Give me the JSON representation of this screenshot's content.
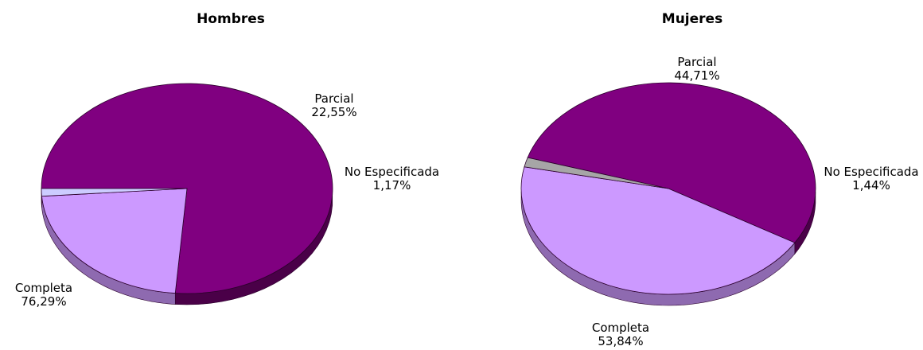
{
  "chart_data": [
    {
      "type": "pie",
      "title": "Hombres",
      "categories": [
        "Completa",
        "Parcial",
        "No Especificada"
      ],
      "values": [
        76.29,
        22.55,
        1.17
      ],
      "value_labels": [
        "76,29%",
        "22,55%",
        "1,17%"
      ],
      "colors": [
        "#800080",
        "#CC99FF",
        "#CCCCFF"
      ],
      "side_colors": [
        "#4A0048",
        "#8E6AB0",
        "#8E8EB0"
      ]
    },
    {
      "type": "pie",
      "title": "Mujeres",
      "categories": [
        "Completa",
        "Parcial",
        "No Especificada"
      ],
      "values": [
        53.84,
        44.71,
        1.44
      ],
      "value_labels": [
        "53,84%",
        "44,71%",
        "1,44%"
      ],
      "colors": [
        "#800080",
        "#CC99FF",
        "#A6A6A6"
      ],
      "side_colors": [
        "#4A0048",
        "#8E6AB0",
        "#6F6F6F"
      ]
    }
  ]
}
